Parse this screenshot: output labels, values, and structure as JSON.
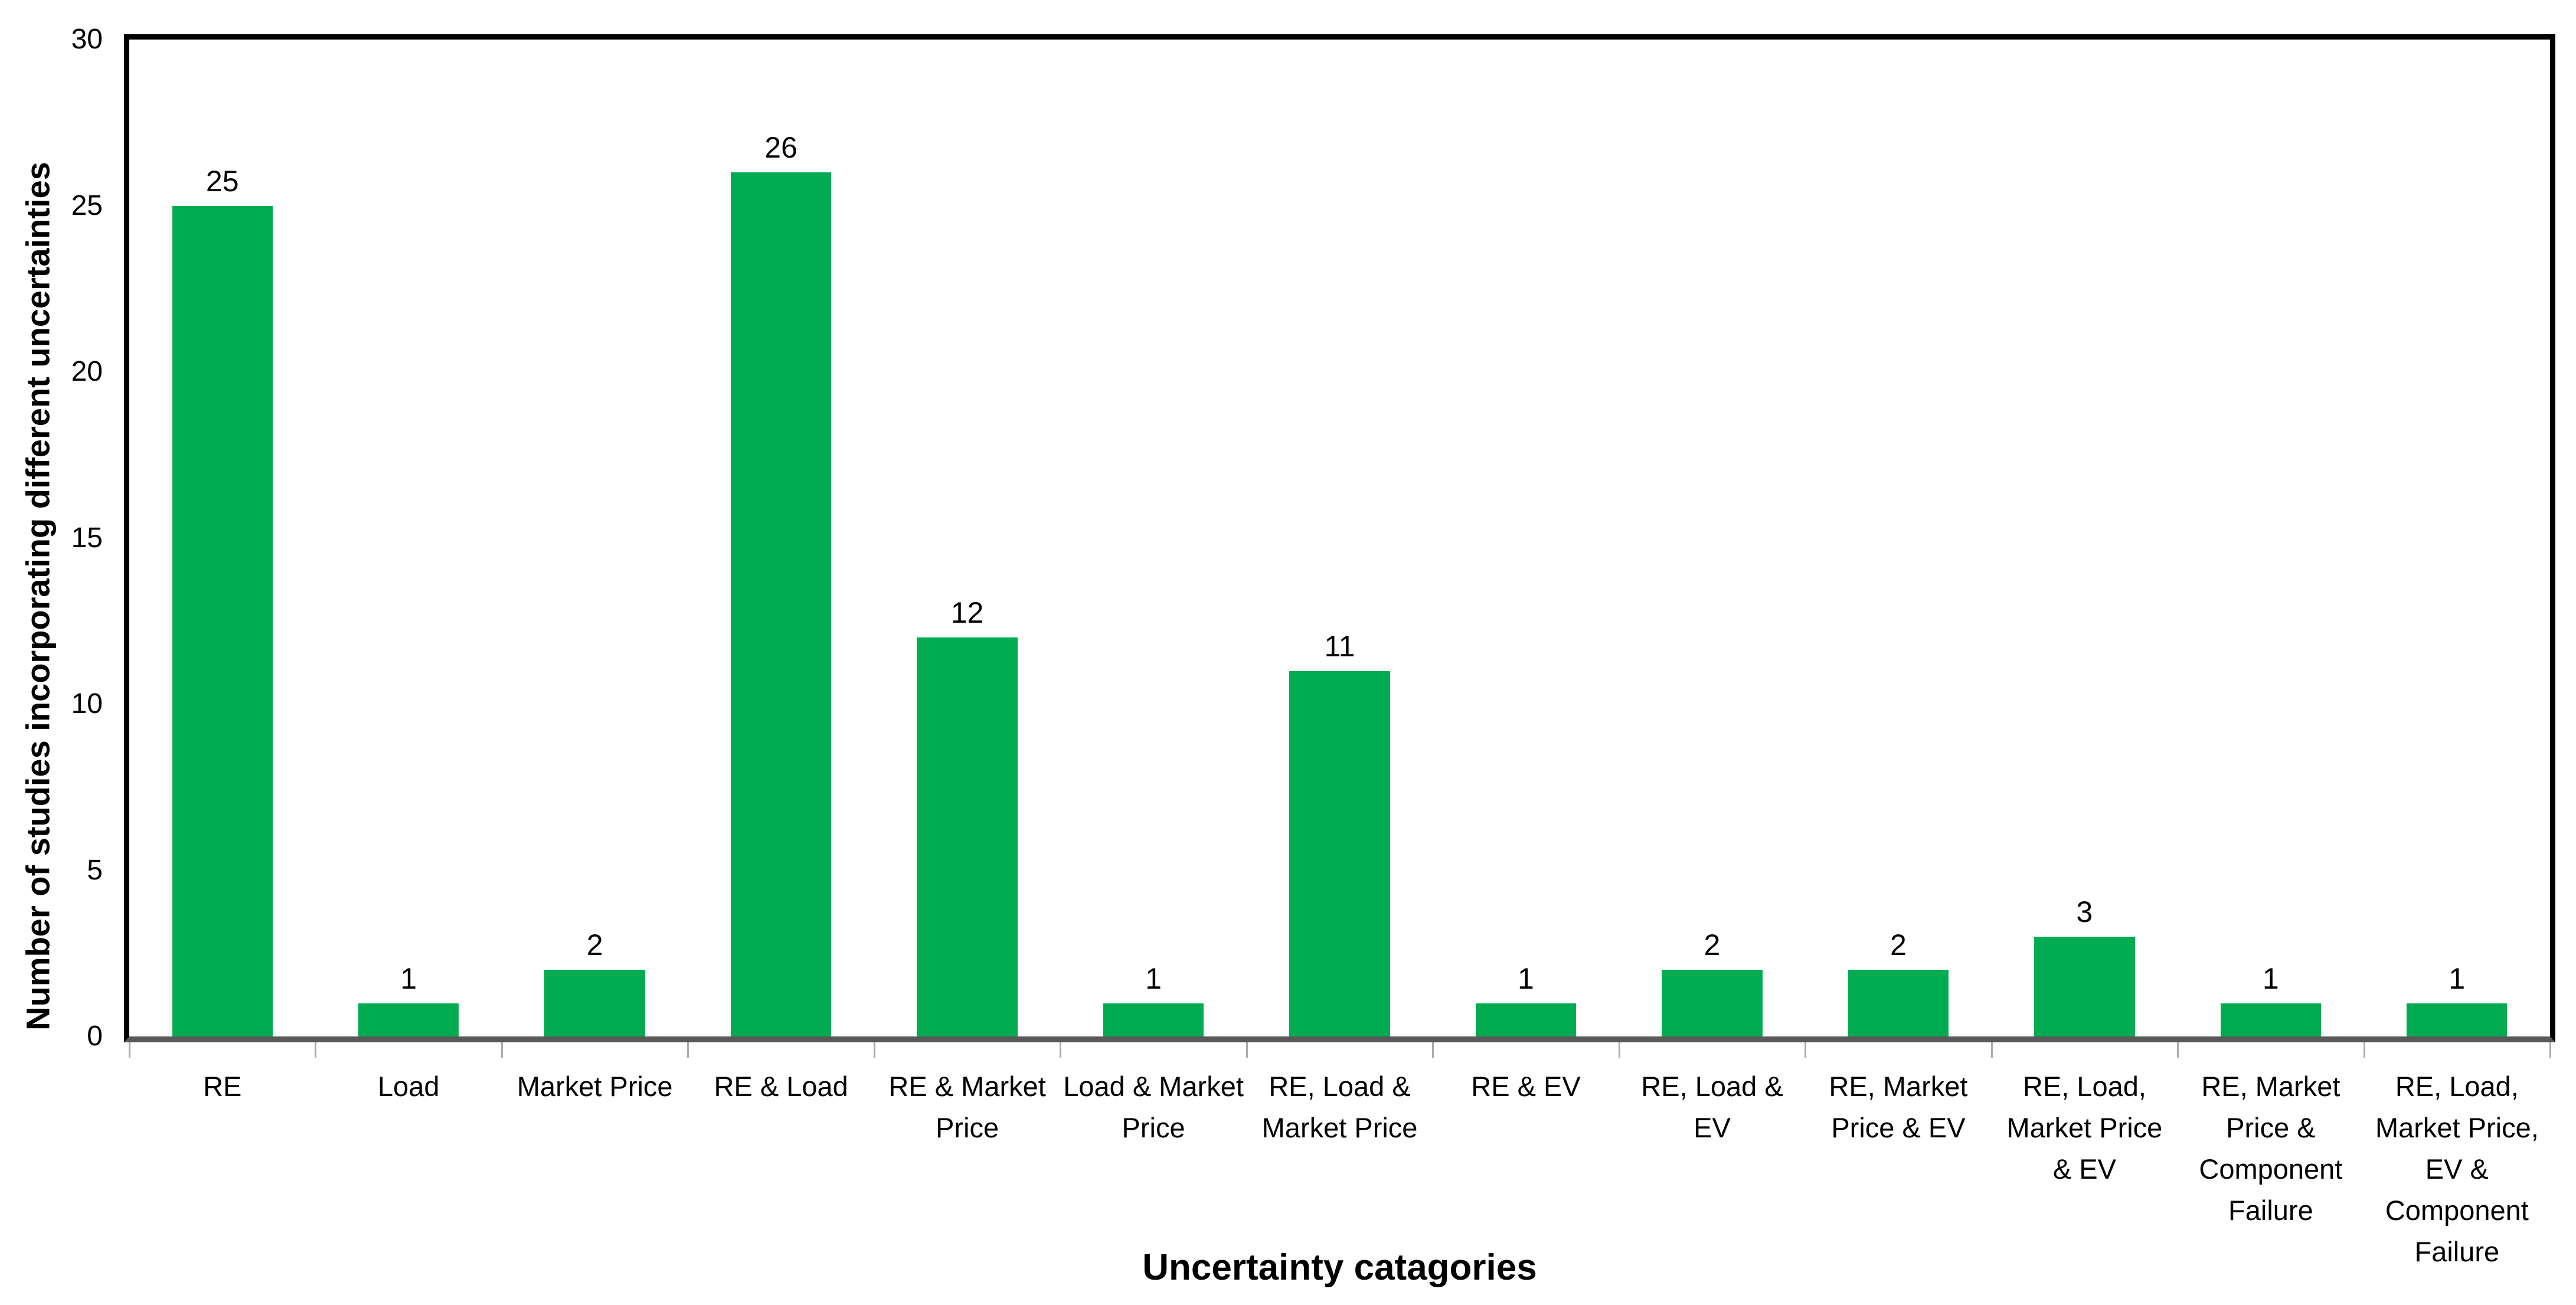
{
  "chart_data": {
    "type": "bar",
    "title": "",
    "xlabel": "Uncertainty catagories",
    "ylabel": "Number of studies incorporating different uncertainties",
    "ylim": [
      0,
      30
    ],
    "yticks": [
      0,
      5,
      10,
      15,
      20,
      25,
      30
    ],
    "grid": false,
    "legend_position": "none",
    "bar_color": "#00ab52",
    "axis_line_color": "#595959",
    "plot_border_color": "#000000",
    "tick_mark_color": "#ababab",
    "categories": [
      "RE",
      "Load",
      "Market Price",
      "RE & Load",
      "RE & Market Price",
      "Load & Market Price",
      "RE, Load & Market Price",
      "RE & EV",
      "RE, Load & EV",
      "RE, Market Price & EV",
      "RE, Load, Market Price & EV",
      "RE, Market Price & Component Failure",
      "RE, Load, Market Price, EV & Component Failure"
    ],
    "category_display_lines": [
      [
        "RE"
      ],
      [
        "Load"
      ],
      [
        "Market Price"
      ],
      [
        "RE & Load"
      ],
      [
        "RE & Market",
        "Price"
      ],
      [
        "Load & Market",
        "Price"
      ],
      [
        "RE, Load &",
        "Market Price"
      ],
      [
        "RE & EV"
      ],
      [
        "RE, Load & EV"
      ],
      [
        "RE, Market",
        "Price & EV"
      ],
      [
        "RE, Load,",
        "Market Price",
        "& EV"
      ],
      [
        "RE, Market",
        "Price &",
        "Component",
        "Failure"
      ],
      [
        "RE, Load,",
        "Market Price,",
        "EV &",
        "Component",
        "Failure"
      ]
    ],
    "values": [
      25,
      1,
      2,
      26,
      12,
      1,
      11,
      1,
      2,
      2,
      3,
      1,
      1
    ],
    "data_labels": [
      "25",
      "1",
      "2",
      "26",
      "12",
      "1",
      "11",
      "1",
      "2",
      "2",
      "3",
      "1",
      "1"
    ]
  }
}
